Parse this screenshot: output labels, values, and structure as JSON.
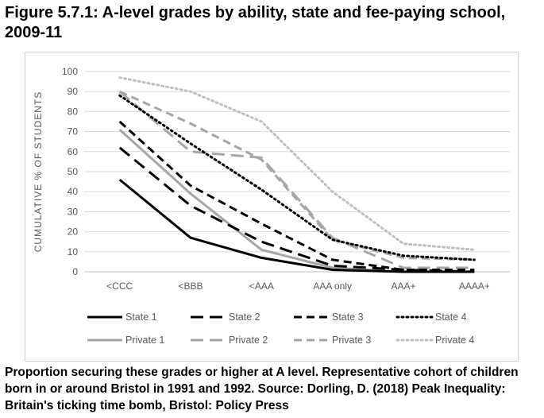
{
  "figure": {
    "title": "Figure 5.7.1: A-level grades by ability, state and fee-paying school, 2009-11",
    "caption": "Proportion securing these grades or higher at A level. Representative cohort of children born in or around Bristol in 1991 and 1992. Source: Dorling, D. (2018) Peak Inequality: Britain's ticking time bomb, Bristol: Policy Press"
  },
  "chart_data": {
    "type": "line",
    "categories": [
      "<CCC",
      "<BBB",
      "<AAA",
      "AAA only",
      "AAA+",
      "AAAA+"
    ],
    "ylabel": "CUMULATIVE % OF STUDENTS",
    "xlabel": "",
    "ylim": [
      0,
      100
    ],
    "yticks": [
      0,
      10,
      20,
      30,
      40,
      50,
      60,
      70,
      80,
      90,
      100
    ],
    "grid": true,
    "legend_position": "bottom",
    "series": [
      {
        "name": "State 1",
        "color": "#000000",
        "style": "solid",
        "values": [
          46,
          17,
          7,
          1,
          0,
          0
        ]
      },
      {
        "name": "State 2",
        "color": "#000000",
        "style": "longdash",
        "values": [
          62,
          33,
          15,
          3,
          1,
          0
        ]
      },
      {
        "name": "State 3",
        "color": "#000000",
        "style": "dash",
        "values": [
          75,
          43,
          24,
          6,
          1,
          1
        ]
      },
      {
        "name": "State 4",
        "color": "#000000",
        "style": "dot",
        "values": [
          88,
          64,
          41,
          16,
          8,
          6
        ]
      },
      {
        "name": "Private 1",
        "color": "#a6a6a6",
        "style": "solid",
        "values": [
          71,
          39,
          11,
          2,
          0,
          0
        ]
      },
      {
        "name": "Private 2",
        "color": "#a6a6a6",
        "style": "longdash",
        "values": [
          90,
          60,
          57,
          17,
          2,
          2
        ]
      },
      {
        "name": "Private 3",
        "color": "#a6a6a6",
        "style": "dash",
        "values": [
          90,
          74,
          56,
          16,
          7,
          6
        ]
      },
      {
        "name": "Private 4",
        "color": "#bfbfbf",
        "style": "dot",
        "values": [
          97,
          90,
          75,
          40,
          14,
          11
        ]
      }
    ]
  }
}
